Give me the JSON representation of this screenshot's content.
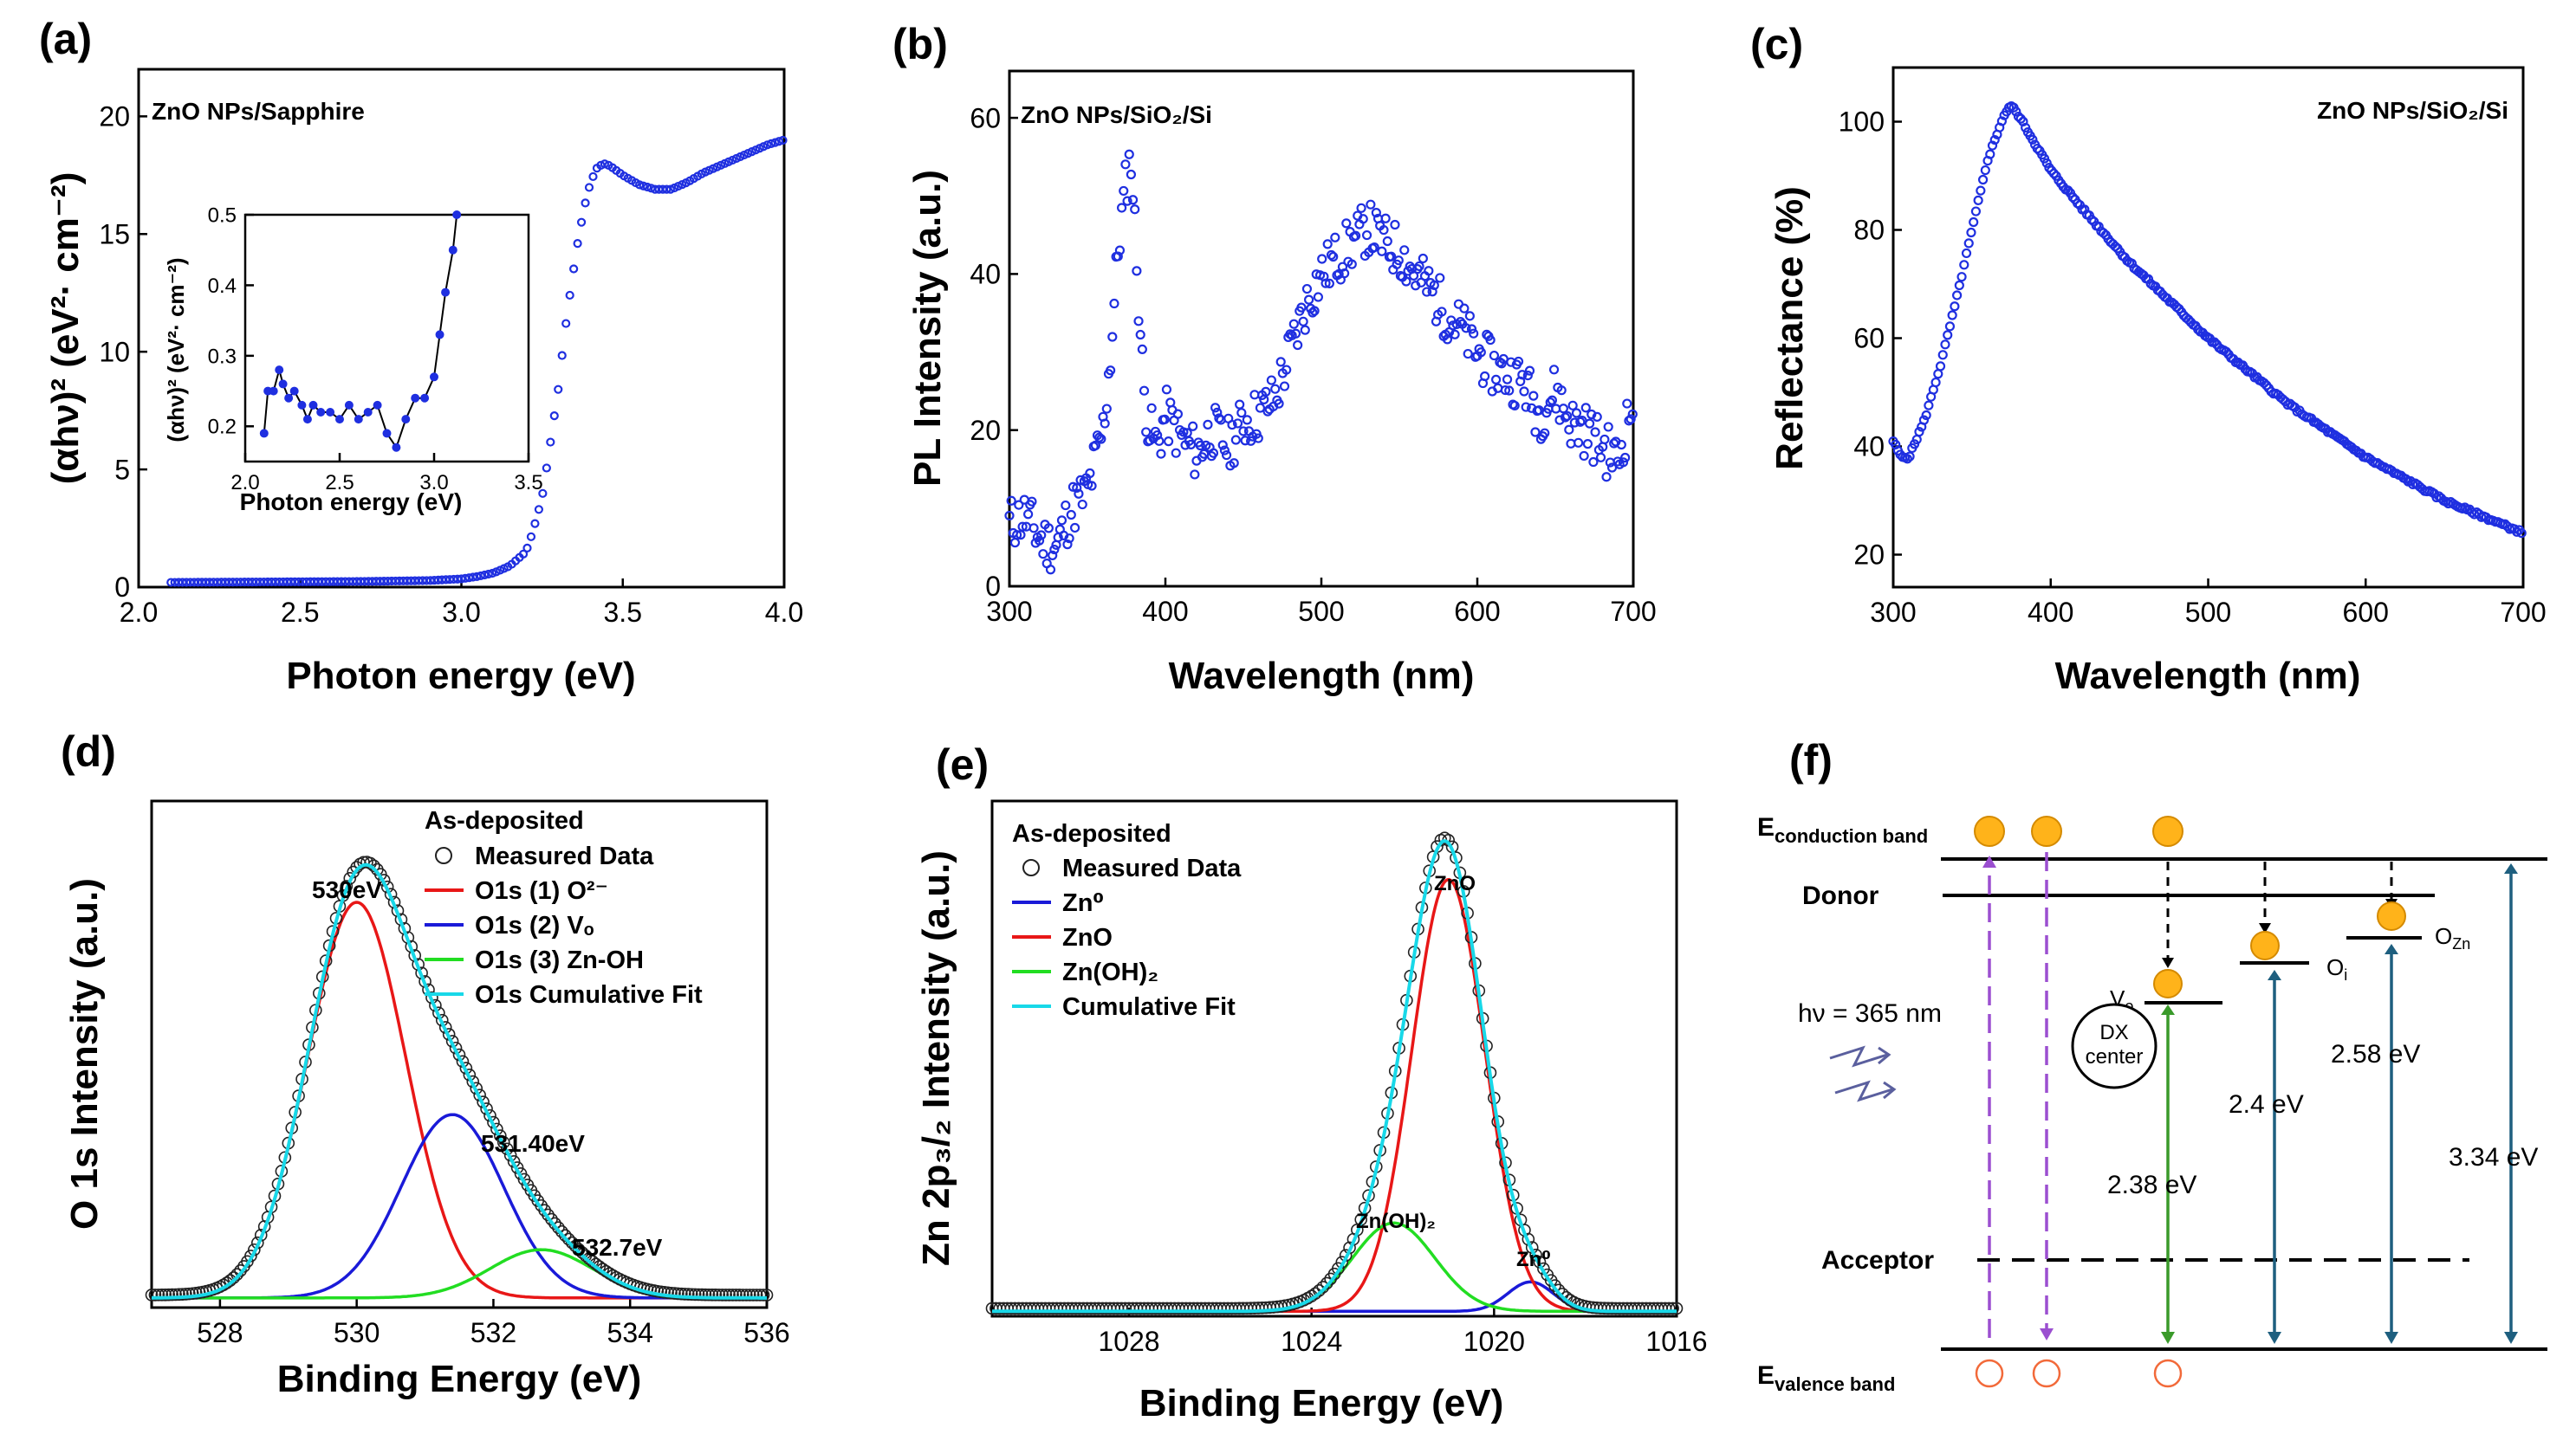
{
  "panels": {
    "a": "(a)",
    "b": "(b)",
    "c": "(c)",
    "d": "(d)",
    "e": "(e)",
    "f": "(f)"
  },
  "chart_data": [
    {
      "id": "a",
      "type": "scatter",
      "annotation": "ZnO NPs/Sapphire",
      "xlabel": "Photon energy (eV)",
      "ylabel": "(αhν)² (eV²· cm⁻²)",
      "xlim": [
        2.0,
        4.0
      ],
      "ylim": [
        0,
        22
      ],
      "xticks": [
        2.0,
        2.5,
        3.0,
        3.5,
        4.0
      ],
      "yticks": [
        0,
        5,
        10,
        15,
        20
      ],
      "series": [
        {
          "name": "ZnO NPs/Sapphire",
          "color": "#1f2fe0",
          "x": [
            2.1,
            2.4,
            2.7,
            2.9,
            3.0,
            3.05,
            3.1,
            3.15,
            3.2,
            3.22,
            3.25,
            3.27,
            3.3,
            3.32,
            3.34,
            3.36,
            3.38,
            3.4,
            3.42,
            3.44,
            3.46,
            3.5,
            3.55,
            3.6,
            3.65,
            3.7,
            3.75,
            3.8,
            3.85,
            3.9,
            3.95,
            4.0
          ],
          "y": [
            0.2,
            0.22,
            0.24,
            0.28,
            0.35,
            0.45,
            0.6,
            0.9,
            1.5,
            2.3,
            3.8,
            5.6,
            8.4,
            10.8,
            12.8,
            14.6,
            16.1,
            17.2,
            17.8,
            18.0,
            17.9,
            17.5,
            17.1,
            16.9,
            16.9,
            17.2,
            17.6,
            17.9,
            18.2,
            18.5,
            18.8,
            19.0
          ]
        }
      ],
      "inset": {
        "xlabel": "Photon energy (eV)",
        "ylabel": "(αhν)² (eV²· cm⁻²)",
        "xlim": [
          2.0,
          3.5
        ],
        "ylim": [
          0.15,
          0.5
        ],
        "xticks": [
          2.0,
          2.5,
          3.0,
          3.5
        ],
        "yticks": [
          0.2,
          0.3,
          0.4,
          0.5
        ],
        "x": [
          2.1,
          2.12,
          2.15,
          2.18,
          2.2,
          2.23,
          2.26,
          2.3,
          2.33,
          2.36,
          2.4,
          2.45,
          2.5,
          2.55,
          2.6,
          2.65,
          2.7,
          2.75,
          2.8,
          2.85,
          2.9,
          2.95,
          3.0,
          3.03,
          3.06,
          3.1,
          3.12
        ],
        "y": [
          0.19,
          0.25,
          0.25,
          0.28,
          0.26,
          0.24,
          0.25,
          0.23,
          0.21,
          0.23,
          0.22,
          0.22,
          0.21,
          0.23,
          0.21,
          0.22,
          0.23,
          0.19,
          0.17,
          0.21,
          0.24,
          0.24,
          0.27,
          0.33,
          0.39,
          0.45,
          0.5
        ]
      }
    },
    {
      "id": "b",
      "type": "scatter",
      "annotation": "ZnO NPs/SiO₂/Si",
      "xlabel": "Wavelength (nm)",
      "ylabel": "PL Intensity (a.u.)",
      "xlim": [
        300,
        700
      ],
      "ylim": [
        0,
        66
      ],
      "xticks": [
        300,
        400,
        500,
        600,
        700
      ],
      "yticks": [
        0,
        20,
        40,
        60
      ],
      "series": [
        {
          "name": "ZnO NPs/SiO₂/Si",
          "color": "#1f2fe0",
          "x": [
            300,
            310,
            320,
            330,
            340,
            350,
            360,
            365,
            370,
            375,
            378,
            382,
            386,
            390,
            395,
            400,
            410,
            420,
            430,
            440,
            450,
            460,
            470,
            480,
            490,
            500,
            510,
            520,
            530,
            540,
            550,
            560,
            570,
            580,
            590,
            600,
            610,
            620,
            630,
            640,
            650,
            660,
            670,
            680,
            690,
            700
          ],
          "y": [
            8,
            9,
            6,
            5,
            10,
            12,
            20,
            30,
            44,
            52,
            55,
            40,
            25,
            20,
            18,
            22,
            19,
            17,
            20,
            18,
            21,
            22,
            24,
            30,
            36,
            40,
            42,
            44,
            46,
            44,
            43,
            40,
            38,
            35,
            33,
            30,
            28,
            27,
            26,
            22,
            25,
            21,
            20,
            18,
            16,
            24
          ]
        }
      ]
    },
    {
      "id": "c",
      "type": "scatter",
      "annotation": "ZnO NPs/SiO₂/Si",
      "xlabel": "Wavelength (nm)",
      "ylabel": "Reflectance (%)",
      "xlim": [
        300,
        700
      ],
      "ylim": [
        14,
        110
      ],
      "xticks": [
        300,
        400,
        500,
        600,
        700
      ],
      "yticks": [
        20,
        40,
        60,
        80,
        100
      ],
      "series": [
        {
          "name": "ZnO NPs/SiO₂/Si",
          "color": "#1f2fe0",
          "x": [
            300,
            305,
            310,
            320,
            330,
            340,
            350,
            360,
            370,
            375,
            380,
            390,
            400,
            420,
            450,
            500,
            550,
            600,
            650,
            700
          ],
          "y": [
            41,
            38,
            38,
            45,
            55,
            67,
            80,
            93,
            101,
            103,
            101,
            96,
            91,
            84,
            74,
            60,
            48,
            38,
            30,
            24
          ]
        }
      ]
    },
    {
      "id": "d",
      "type": "line",
      "title": "As-deposited",
      "xlabel": "Binding Energy (eV)",
      "ylabel": "O 1s Intensity (a.u.)",
      "xlim": [
        527,
        536
      ],
      "ylim": [
        0,
        105
      ],
      "xticks": [
        528,
        530,
        532,
        534,
        536
      ],
      "peaks": [
        {
          "name": "O1s (1) O²⁻",
          "color": "#e81717",
          "center": 530.0,
          "height": 82,
          "sigma": 0.72
        },
        {
          "name": "O1s (2) Vₒ",
          "color": "#1a1ad8",
          "center": 531.4,
          "height": 38,
          "sigma": 0.75
        },
        {
          "name": "O1s (3) Zn-OH",
          "color": "#22dd22",
          "center": 532.7,
          "height": 10,
          "sigma": 0.75
        }
      ],
      "measured_name": "Measured Data",
      "cumulative_name": "O1s Cumulative Fit",
      "cumulative_color": "#18d8e8",
      "baseline": 2,
      "peak_labels": [
        "530eV",
        "531.40eV",
        "532.7eV"
      ]
    },
    {
      "id": "e",
      "type": "line",
      "title": "As-deposited",
      "xlabel": "Binding Energy (eV)",
      "ylabel": "Zn 2p₃/₂ Intensity (a.u.)",
      "xlim": [
        1016,
        1031
      ],
      "ylim": [
        0,
        105
      ],
      "xticks": [
        1016,
        1020,
        1024,
        1028
      ],
      "peaks": [
        {
          "name": "Zn⁰",
          "color": "#1a1ad8",
          "center": 1019.2,
          "height": 6,
          "sigma": 0.5
        },
        {
          "name": "ZnO",
          "color": "#e81717",
          "center": 1021.0,
          "height": 88,
          "sigma": 0.8
        },
        {
          "name": "Zn(OH)₂",
          "color": "#22dd22",
          "center": 1022.2,
          "height": 18,
          "sigma": 0.9
        }
      ],
      "measured_name": "Measured Data",
      "cumulative_name": "Cumulative Fit",
      "cumulative_color": "#18d8e8",
      "baseline": 1,
      "peak_labels": [
        "ZnO",
        "Zn(OH)₂",
        "Zn⁰"
      ]
    }
  ],
  "diagram_f": {
    "conduction_band": "E",
    "conduction_sub": "conduction band",
    "valence_band": "E",
    "valence_sub": "valence band",
    "donor": "Donor",
    "acceptor": "Acceptor",
    "excitation": "hν = 365 nm",
    "vo": "V",
    "vo_sub": "o",
    "dx_center": [
      "DX",
      "center"
    ],
    "oi": "O",
    "oi_sub": "i",
    "ozn": "O",
    "ozn_sub": "Zn",
    "energies": [
      "2.38 eV",
      "2.4 eV",
      "2.58 eV",
      "3.34 eV"
    ],
    "colors": {
      "electron": "#ffb31a",
      "hole": "#f26a3a",
      "purple": "#9b4fd0",
      "green": "#3a9a2a",
      "teal": "#1e5f7f"
    }
  }
}
